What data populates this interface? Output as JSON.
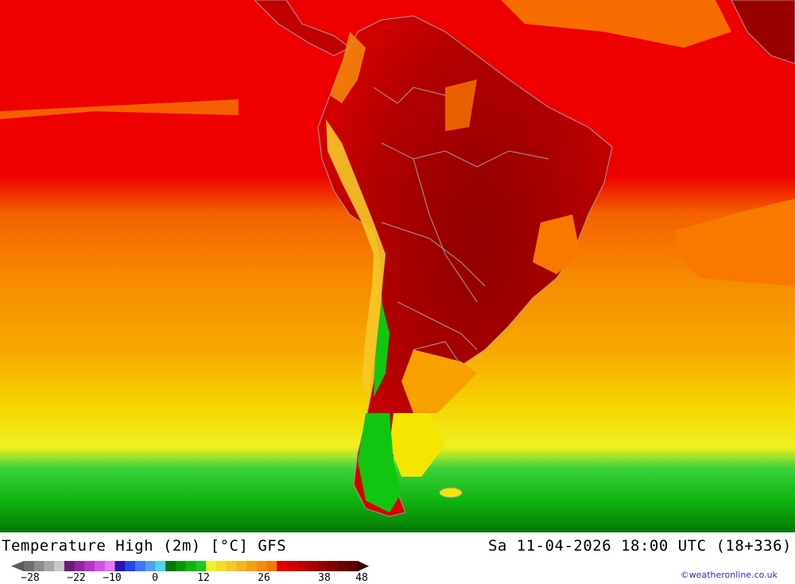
{
  "map": {
    "region": "South America",
    "colors": {
      "sea_hot": "#ee0000",
      "land_hot": "#c00000",
      "land_hottest": "#8f0000",
      "warm": "#f87800",
      "mild": "#f7a000",
      "yellow": "#f5e600",
      "green": "#10c610",
      "dark_green": "#038a03",
      "border": "#9e9e9e"
    }
  },
  "footer": {
    "title": "Temperature High (2m) [°C] GFS",
    "datetime": "Sa 11-04-2026 18:00 UTC (18+336)",
    "credit": "©weatheronline.co.uk",
    "scale_labels": [
      "−28",
      "−22",
      "−10",
      "0",
      "12",
      "26",
      "38",
      "48"
    ],
    "scale_colors": [
      "#6e6e6e",
      "#8c8c8c",
      "#a8a8a8",
      "#c8c8c8",
      "#6a1a7a",
      "#8c28a0",
      "#b432c8",
      "#d250e6",
      "#e678f0",
      "#2814b4",
      "#2846e6",
      "#3c78f0",
      "#50a0f0",
      "#50d2f0",
      "#067806",
      "#0a960a",
      "#10b410",
      "#1ec81e",
      "#f0f032",
      "#f5dc28",
      "#f5c828",
      "#f5b41e",
      "#f5a014",
      "#f58c0a",
      "#f57800",
      "#e60000",
      "#d20000",
      "#be0000",
      "#aa0000",
      "#960000",
      "#820000",
      "#6e0000",
      "#5a0000"
    ]
  }
}
